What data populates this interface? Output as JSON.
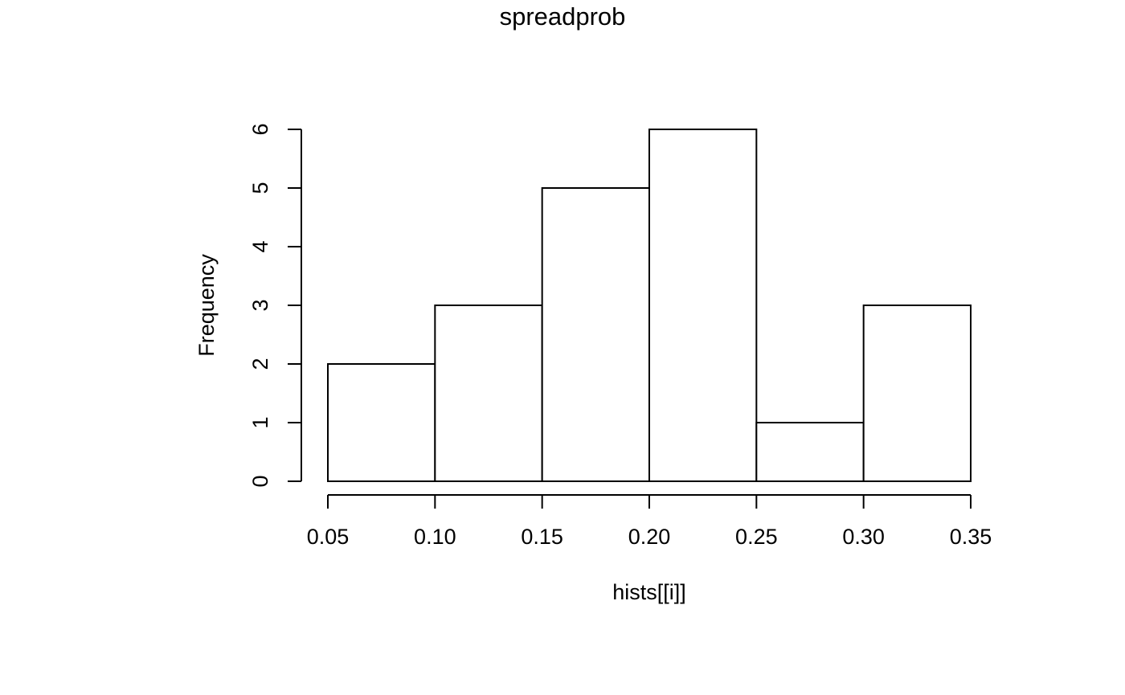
{
  "chart_data": {
    "type": "bar",
    "title": "spreadprob",
    "xlabel": "hists[[i]]",
    "ylabel": "Frequency",
    "bins": [
      [
        0.05,
        0.1
      ],
      [
        0.1,
        0.15
      ],
      [
        0.15,
        0.2
      ],
      [
        0.2,
        0.25
      ],
      [
        0.25,
        0.3
      ],
      [
        0.3,
        0.35
      ]
    ],
    "values": [
      2,
      3,
      5,
      6,
      1,
      3
    ],
    "xlim": [
      0.05,
      0.35
    ],
    "ylim": [
      0,
      6
    ],
    "x_ticks": [
      "0.05",
      "0.10",
      "0.15",
      "0.20",
      "0.25",
      "0.30",
      "0.35"
    ],
    "y_ticks": [
      "0",
      "1",
      "2",
      "3",
      "4",
      "5",
      "6"
    ],
    "grid": false,
    "legend": "none"
  }
}
